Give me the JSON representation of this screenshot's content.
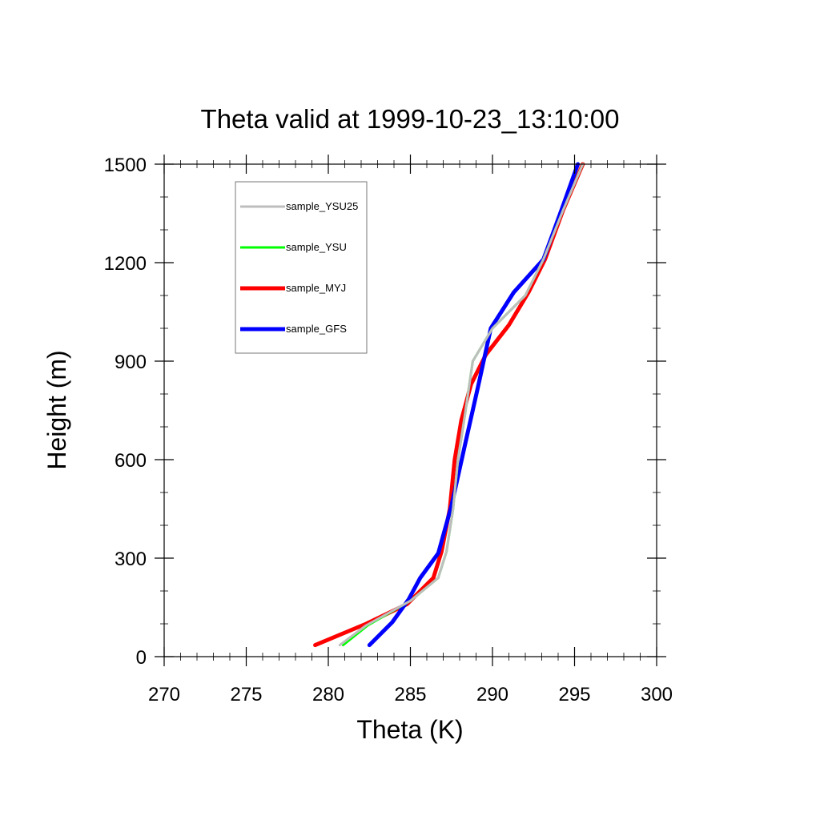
{
  "chart_data": {
    "type": "line",
    "title": "Theta valid at 1999-10-23_13:10:00",
    "xlabel": "Theta (K)",
    "ylabel": "Height (m)",
    "xlim": [
      270,
      300
    ],
    "ylim": [
      0,
      1500
    ],
    "xticks": [
      270,
      275,
      280,
      285,
      290,
      295,
      300
    ],
    "yticks": [
      0,
      300,
      600,
      900,
      1200,
      1500
    ],
    "grid": false,
    "legend_position": "top-left",
    "series": [
      {
        "name": "sample_YSU25",
        "color": "#bebebe",
        "points": [
          [
            280.7,
            35
          ],
          [
            282.3,
            95
          ],
          [
            285.0,
            170
          ],
          [
            286.7,
            240
          ],
          [
            287.2,
            320
          ],
          [
            287.6,
            450
          ],
          [
            287.9,
            600
          ],
          [
            288.3,
            730
          ],
          [
            288.8,
            900
          ],
          [
            290.0,
            1000
          ],
          [
            292.0,
            1100
          ],
          [
            293.1,
            1210
          ],
          [
            294.3,
            1360
          ],
          [
            295.5,
            1500
          ]
        ]
      },
      {
        "name": "sample_YSU",
        "color": "#00ff00",
        "points": [
          [
            280.9,
            35
          ],
          [
            282.4,
            95
          ],
          [
            285.0,
            170
          ],
          [
            286.7,
            240
          ],
          [
            287.2,
            320
          ],
          [
            287.6,
            450
          ],
          [
            287.9,
            600
          ],
          [
            288.3,
            730
          ],
          [
            288.8,
            900
          ],
          [
            290.0,
            1000
          ],
          [
            292.0,
            1100
          ],
          [
            293.1,
            1210
          ],
          [
            294.3,
            1360
          ],
          [
            295.5,
            1500
          ]
        ]
      },
      {
        "name": "sample_MYJ",
        "color": "#ff0000",
        "points": [
          [
            279.2,
            35
          ],
          [
            282.3,
            100
          ],
          [
            284.8,
            160
          ],
          [
            286.4,
            240
          ],
          [
            286.9,
            320
          ],
          [
            287.4,
            450
          ],
          [
            287.7,
            600
          ],
          [
            288.1,
            720
          ],
          [
            288.7,
            830
          ],
          [
            289.6,
            920
          ],
          [
            291.0,
            1010
          ],
          [
            292.2,
            1110
          ],
          [
            293.2,
            1210
          ],
          [
            294.3,
            1360
          ],
          [
            295.5,
            1500
          ]
        ]
      },
      {
        "name": "sample_GFS",
        "color": "#0000ff",
        "points": [
          [
            282.5,
            35
          ],
          [
            283.9,
            105
          ],
          [
            284.9,
            175
          ],
          [
            285.6,
            240
          ],
          [
            286.7,
            315
          ],
          [
            287.5,
            460
          ],
          [
            288.3,
            640
          ],
          [
            289.2,
            840
          ],
          [
            289.9,
            1000
          ],
          [
            291.3,
            1110
          ],
          [
            293.1,
            1210
          ],
          [
            294.2,
            1360
          ],
          [
            295.2,
            1500
          ]
        ]
      }
    ]
  }
}
